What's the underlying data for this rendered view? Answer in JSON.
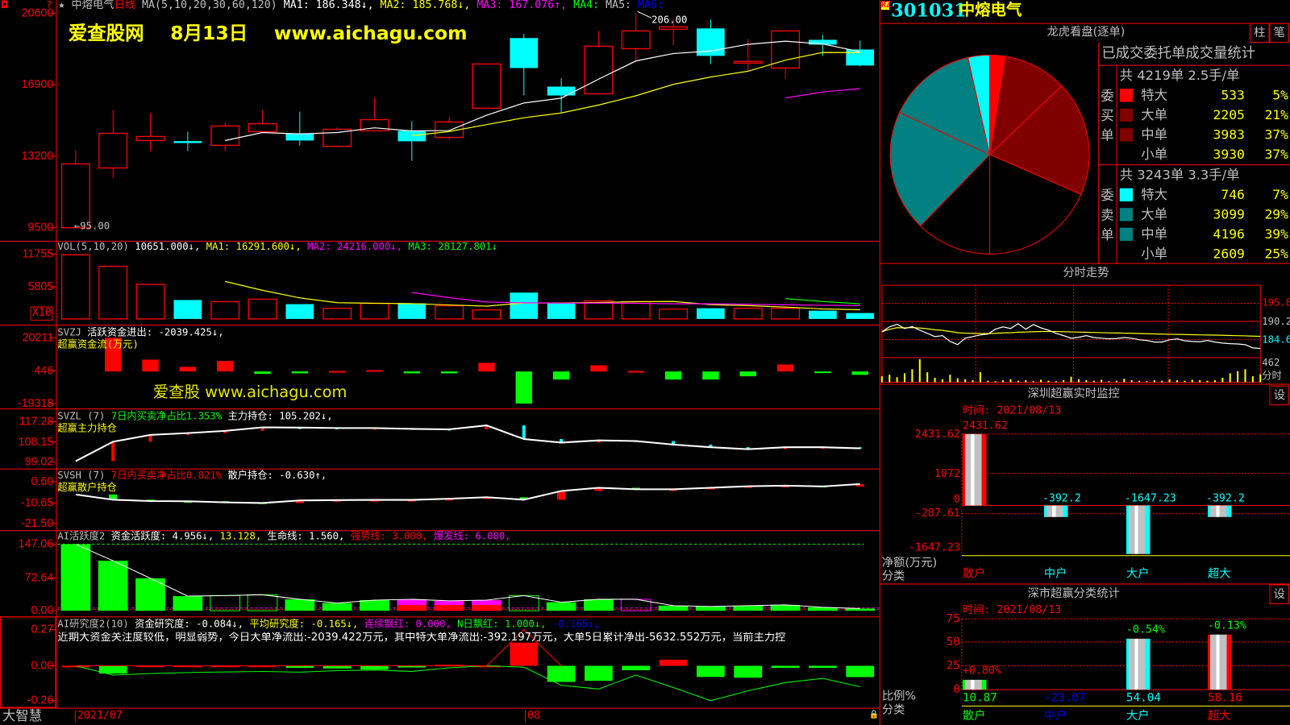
{
  "colors": {
    "up": "#ff0000",
    "down": "#00ffff",
    "grid": "#ff0000",
    "bg": "#000000",
    "ma1": "#ffffff",
    "ma2": "#ffff00",
    "ma3": "#ff00ff",
    "ma4": "#00ff00"
  },
  "main": {
    "star": "★",
    "name": "中熔电气",
    "period": "日线",
    "ma_params": "MA(5,10,20,30,60,120)",
    "ma1": "MA1: 186.348↓,",
    "ma2": "MA2: 185.768↓,",
    "ma3": "MA3: 167.076↑,",
    "ma4": "MA4:",
    "ma5": "MA5:",
    "ma6": "MA6:",
    "watermark": "爱查股网    8月13日    www.aichagu.com",
    "low_label": "←95.00",
    "high_label": "206.00"
  },
  "volume_panel": {
    "label": "VOL(5,10,20)",
    "value": "10651.000↓,",
    "ma1": "MA1: 16291.600↓,",
    "ma2": "MA2: 24216.000↓,",
    "ma3": "MA3: 28127.801↓",
    "unit_badge": "X10"
  },
  "svzj_panel": {
    "label": "SVZJ",
    "title": "活跃资金进出: -2039.425↓,",
    "subtitle": "超赢资金流(万元)",
    "watermark": "爱查股 www.aichagu.com"
  },
  "svzl_panel": {
    "label": "SVZL (7)",
    "ratio": "7日内买卖净占比1.353%",
    "hold": "主力持仓: 105.202↓,",
    "subtitle": "超赢主力持仓"
  },
  "svsh_panel": {
    "label": "SVSH (7)",
    "ratio": "7日内买卖净占比0.821%",
    "hold": "散户持仓: -0.630↑,",
    "subtitle": "超赢散户持仓"
  },
  "ai_active_panel": {
    "label": "AI活跃度2",
    "active": "资金活跃度: 4.956↓,",
    "v2": "13.128,",
    "life": "生命线: 1.560,",
    "strong": "强势线: 3.000,",
    "burst": "爆发线: 6.000,"
  },
  "ai_research_panel": {
    "label": "AI研究度2(10)",
    "research": "资金研究度: -0.084↓,",
    "avg": "平均研究度: -0.165↓,",
    "red_streak": "连续飘红: 0.000,",
    "n_red": "N日飘红: 1.000↓,",
    "v5": "-0.165↓,",
    "comment": "近期大资金关注度较低，明显弱势，今日大单净流出:-2039.422万元，其中特大单净流出:-392.197万元，大单5日累计净出-5632.552万元，当前主力控"
  },
  "status_bar": {
    "app": "大智慧",
    "month1": "2021/07",
    "month2": "08",
    "lock_icon": "lock-icon"
  },
  "right": {
    "badge": "RZ",
    "code": "301031",
    "name": "中熔电气",
    "dragon": {
      "title": "龙虎看盘(逐单)",
      "btn_bar": "柱",
      "btn_tick": "笔",
      "stats_title": "已成交委托单成交量统计",
      "buy": {
        "side_label": "委买单",
        "summary": "共 4219单 2.5手/单",
        "rows": [
          {
            "label": "特大",
            "value": "533",
            "pct": "5%",
            "color": "#ff0000"
          },
          {
            "label": "大单",
            "value": "2205",
            "pct": "21%",
            "color": "#800000"
          },
          {
            "label": "中单",
            "value": "3983",
            "pct": "37%",
            "color": "#800000"
          },
          {
            "label": "小单",
            "value": "3930",
            "pct": "37%",
            "color": "#000000"
          }
        ]
      },
      "sell": {
        "side_label": "委卖单",
        "summary": "共 3243单 3.3手/单",
        "rows": [
          {
            "label": "特大",
            "value": "746",
            "pct": "7%",
            "color": "#00ffff"
          },
          {
            "label": "大单",
            "value": "3099",
            "pct": "29%",
            "color": "#008080"
          },
          {
            "label": "中单",
            "value": "4196",
            "pct": "39%",
            "color": "#008080"
          },
          {
            "label": "小单",
            "value": "2609",
            "pct": "25%",
            "color": "#000000"
          }
        ]
      }
    },
    "intraday": {
      "title": "分时走势",
      "price_labels": [
        "195.8",
        "190.2",
        "184.6"
      ],
      "vol_label": "462",
      "vol_tag": "分时"
    },
    "sz_monitor": {
      "title": "深圳超赢实时监控",
      "setting": "设",
      "time": "时间: 2021/08/13",
      "ylabel": "净额(万元)",
      "xlabel": "分类",
      "yticks": [
        "2431.62",
        "1072",
        "0",
        "-287.61",
        "-1647.23"
      ]
    },
    "sz_class": {
      "title": "深市超赢分类统计",
      "setting": "设",
      "time": "时间: 2021/08/13",
      "ylabel": "比例%",
      "xlabel": "分类",
      "yticks": [
        "75",
        "50",
        "25",
        "0"
      ]
    }
  },
  "chart_data": [
    {
      "type": "candlestick",
      "name": "kline",
      "ylim": [
        95,
        206
      ],
      "yticks": [
        "20600",
        "16900",
        "13200",
        "9500"
      ],
      "ytick_values": [
        206,
        169,
        132,
        95
      ],
      "ma_periods": [
        5,
        10,
        20
      ],
      "ohlc": [
        [
          95,
          135.1,
          95,
          128.0
        ],
        [
          125.9,
          155.9,
          120.5,
          143.8
        ],
        [
          140.1,
          154.3,
          134.6,
          142.2
        ],
        [
          139.8,
          144.7,
          134.6,
          138.8
        ],
        [
          137.6,
          149.3,
          134.6,
          147.6
        ],
        [
          144.7,
          155.9,
          144.2,
          148.8
        ],
        [
          143.8,
          155.1,
          137.6,
          140.1
        ],
        [
          137.1,
          146.7,
          136.7,
          145.9
        ],
        [
          145.1,
          162.2,
          145.1,
          150.9
        ],
        [
          145.1,
          150.1,
          129.6,
          139.7
        ],
        [
          141.7,
          152.2,
          140.5,
          149.7
        ],
        [
          156.8,
          179.7,
          156.8,
          179.7
        ],
        [
          193.1,
          195.2,
          163.4,
          177.6
        ],
        [
          168.0,
          172.2,
          154.7,
          163.4
        ],
        [
          164.3,
          196.8,
          164.3,
          188.9
        ],
        [
          187.6,
          206.0,
          181.8,
          196.8
        ],
        [
          197.7,
          203.1,
          189.3,
          198.9
        ],
        [
          198.1,
          202.7,
          179.7,
          183.9
        ],
        [
          180.6,
          192.6,
          176.0,
          181.0
        ],
        [
          177.6,
          196.8,
          172.2,
          196.8
        ],
        [
          192.2,
          194.7,
          183.9,
          189.7
        ],
        [
          187.2,
          191.8,
          178.5,
          178.9
        ]
      ]
    },
    {
      "type": "bar",
      "name": "volume",
      "unit": "X10",
      "ylim": [
        0,
        11755
      ],
      "yticks": [
        "11755",
        "5805"
      ],
      "ytick_values": [
        11755,
        5805
      ],
      "ma_periods": [
        5,
        10,
        20
      ],
      "values": [
        11606,
        9523,
        6250,
        3422,
        3125,
        3571,
        2678,
        1934,
        2827,
        2827,
        2381,
        1637,
        4762,
        2827,
        3274,
        3125,
        1786,
        1934,
        1934,
        1934,
        1488,
        1065
      ]
    },
    {
      "type": "bar",
      "name": "svzj",
      "ylim": [
        -19318,
        20211
      ],
      "yticks": [
        "20211",
        "446",
        "-19318"
      ],
      "ytick_values": [
        20211,
        446,
        -19318
      ],
      "values": [
        null,
        20211,
        7100,
        2750,
        6300,
        -1460,
        -1130,
        300,
        800,
        -1130,
        -1130,
        5200,
        -19318,
        -4860,
        3700,
        300,
        -4860,
        -4860,
        -2900,
        4200,
        -300,
        -2039
      ]
    },
    {
      "type": "line",
      "name": "svzl",
      "ylim": [
        99.02,
        117.28
      ],
      "yticks": [
        "117.28",
        "108.15",
        "99.02"
      ],
      "ytick_values": [
        117.28,
        108.15,
        99.02
      ],
      "values": [
        99.4,
        108.2,
        111.3,
        112.1,
        113.1,
        114.7,
        114.6,
        114.4,
        114.4,
        114.0,
        113.8,
        115.6,
        109.4,
        107.8,
        108.8,
        108.5,
        106.9,
        105.7,
        104.8,
        105.7,
        105.7,
        105.2
      ]
    },
    {
      "type": "line",
      "name": "svsh",
      "ylim": [
        -21.5,
        0.6
      ],
      "yticks": [
        "0.60",
        "-10.65",
        "-21.50"
      ],
      "ytick_values": [
        0.6,
        -10.65,
        -21.5
      ],
      "values": [
        -6.15,
        -8.9,
        -9.6,
        -9.7,
        -10.3,
        -10.65,
        -9.3,
        -9.1,
        -9.0,
        -9.0,
        -8.4,
        -7.6,
        -8.9,
        -4.3,
        -2.6,
        -3.4,
        -3.4,
        -2.6,
        -1.8,
        -1.5,
        -1.9,
        -0.63
      ]
    },
    {
      "type": "bar",
      "name": "ai_active",
      "ylim": [
        0,
        147.06
      ],
      "yticks": [
        "147.06",
        "72.64",
        "0.00"
      ],
      "ytick_values": [
        147.06,
        72.64,
        0
      ],
      "burst_line": 147.06,
      "strong_line": 3,
      "life_line": 6,
      "values": [
        147,
        110.5,
        71.7,
        32.3,
        33.5,
        35.3,
        25.3,
        17,
        23.5,
        25.3,
        21.8,
        23.5,
        33.5,
        18.8,
        25.3,
        25.3,
        11.2,
        9.4,
        11.2,
        12.9,
        7.6,
        4.956
      ],
      "styles": [
        "solid",
        "solid",
        "solid",
        "solid",
        "hollow",
        "hollow",
        "solid",
        "solid",
        "solid",
        "magenta",
        "magenta",
        "magenta",
        "hollow",
        "solid",
        "solid",
        "hollow-magenta",
        "solid",
        "solid",
        "solid",
        "solid",
        "solid",
        "solid"
      ]
    },
    {
      "type": "bar",
      "name": "ai_research",
      "ylim": [
        -0.26,
        0.27
      ],
      "yticks": [
        "0.27",
        "0.00",
        "-0.26"
      ],
      "ytick_values": [
        0.27,
        0,
        -0.26
      ],
      "values": [
        0.001,
        -0.058,
        0.002,
        0.002,
        0.002,
        0.002,
        -0.015,
        -0.02,
        -0.027,
        -0.012,
        0.008,
        0.002,
        0.173,
        -0.12,
        -0.112,
        -0.033,
        0.046,
        -0.083,
        -0.089,
        -0.015,
        -0.015,
        -0.084
      ],
      "avg_line": [
        0,
        -0.069,
        -0.058,
        -0.05,
        -0.046,
        -0.042,
        -0.047,
        -0.036,
        -0.031,
        -0.042,
        -0.015,
        0,
        -0.01,
        -0.146,
        -0.173,
        -0.069,
        -0.162,
        -0.26,
        -0.187,
        -0.125,
        -0.094,
        -0.156
      ],
      "red_line": [
        0,
        0,
        0,
        0,
        0,
        0,
        0,
        0,
        0,
        0,
        0,
        0,
        0.27,
        0
      ]
    },
    {
      "type": "pie",
      "name": "order_pie",
      "order": "clockwise-from-top",
      "slices": [
        {
          "label": "委买特大",
          "value": 533,
          "color": "#ff0000"
        },
        {
          "label": "委买大单",
          "value": 2205,
          "color": "#800000"
        },
        {
          "label": "委买中单",
          "value": 3983,
          "color": "#800000"
        },
        {
          "label": "委买小单",
          "value": 3930,
          "color": "#000000"
        },
        {
          "label": "委卖小单",
          "value": 2609,
          "color": "#000000"
        },
        {
          "label": "委卖中单",
          "value": 4196,
          "color": "#008080"
        },
        {
          "label": "委卖大单",
          "value": 3099,
          "color": "#008080"
        },
        {
          "label": "委卖特大",
          "value": 746,
          "color": "#00ffff"
        }
      ]
    },
    {
      "type": "line",
      "name": "intraday",
      "ylim": [
        179.0,
        201.4
      ],
      "prev_close": 184.6,
      "price": [
        187.0,
        188.5,
        189.3,
        188.0,
        188.6,
        187.5,
        186.5,
        185.5,
        185.8,
        184.0,
        183.0,
        185.0,
        185.5,
        186.0,
        186.3,
        187.8,
        188.5,
        188.0,
        189.5,
        187.8,
        189.2,
        188.2,
        187.5,
        186.5,
        185.8,
        185.0,
        185.3,
        185.8,
        185.2,
        185.0,
        184.8,
        184.9,
        185.2,
        185.0,
        184.5,
        184.3,
        183.8,
        183.8,
        184.5,
        184.8,
        184.2,
        184.0,
        183.9,
        184.3,
        183.8,
        183.5,
        183.3,
        183.2,
        183.0,
        182.0,
        181.8
      ],
      "volume": [
        120,
        150,
        100,
        180,
        260,
        462,
        200,
        90,
        60,
        150,
        80,
        60,
        40,
        200,
        30,
        20,
        40,
        60,
        30,
        40,
        20,
        50,
        30,
        20,
        40,
        110,
        60,
        40,
        30,
        50,
        20,
        30,
        70,
        40,
        30,
        20,
        40,
        30,
        60,
        40,
        30,
        50,
        40,
        30,
        40,
        90,
        180,
        220,
        260,
        120,
        160
      ]
    },
    {
      "type": "bar",
      "name": "sz_monitor",
      "ylim": [
        -1647.23,
        2431.62
      ],
      "categories": [
        "散户",
        "中户",
        "大户",
        "超大"
      ],
      "values": [
        2431.62,
        -392.2,
        -1647.23,
        -392.2
      ],
      "value_labels": [
        "2431.62",
        "-392.2",
        "-1647.23",
        "-392.2"
      ],
      "category_colors": [
        "#ff0000",
        "#00ffff",
        "#00ffff",
        "#00ffff"
      ]
    },
    {
      "type": "bar",
      "name": "sz_class",
      "ylim": [
        0,
        75
      ],
      "categories": [
        "散户",
        "中户",
        "大户",
        "超大"
      ],
      "values": [
        10.87,
        -23.07,
        54.04,
        58.16
      ],
      "value_labels": [
        "10.87",
        "-23.07",
        "54.04",
        "58.16"
      ],
      "change_labels": [
        "+0.80%",
        "",
        "-0.54%",
        "-0.13%"
      ],
      "change_colors": [
        "#ff0000",
        "#00ff00",
        "#00ff00",
        "#00ff00"
      ],
      "category_colors": [
        "#00ff00",
        "#0000ff",
        "#00ffff",
        "#ff0000"
      ],
      "bar_colors": [
        "#00ff00",
        "#0000ff",
        "#00ffff",
        "#ff0000"
      ]
    }
  ]
}
